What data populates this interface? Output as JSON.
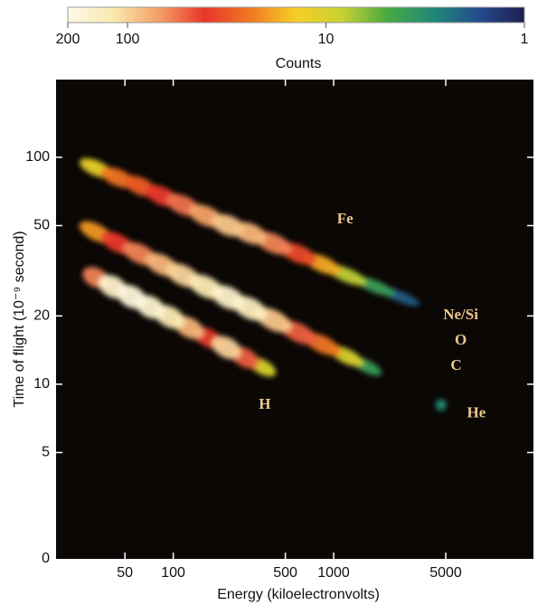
{
  "chart_data": {
    "type": "scatter",
    "x_label": "Energy (kiloelectronvolts)",
    "y_label": "Time of flight (10⁻⁹ second)",
    "xscale": "log",
    "yscale": "log",
    "xlim": [
      18.6,
      17600
    ],
    "ylim": [
      1.7,
      220
    ],
    "xticks": [
      50,
      100,
      500,
      1000,
      5000
    ],
    "yticks": [
      5,
      10,
      20,
      50,
      100
    ],
    "y_origin_label": "0",
    "background": "#0b0705",
    "tracks": [
      {
        "x": [
          33,
          45,
          62,
          85,
          115,
          160,
          220,
          300,
          420,
          600,
          850,
          1200,
          1800,
          2600
        ],
        "y": [
          89.6,
          81.4,
          74.7,
          67.6,
          61.6,
          55.2,
          50.1,
          46.3,
          41.8,
          37.6,
          33.8,
          30.3,
          27.0,
          24.3
        ],
        "counts": [
          12,
          25,
          30,
          40,
          55,
          70,
          90,
          80,
          60,
          35,
          18,
          8,
          4,
          2
        ]
      },
      {
        "x": [
          33,
          45,
          62,
          85,
          115,
          160,
          220,
          300,
          420,
          600,
          850,
          1200,
          1600
        ],
        "y": [
          46.8,
          41.9,
          37.5,
          33.6,
          30.2,
          26.9,
          24.1,
          21.6,
          19.2,
          16.9,
          15.0,
          13.3,
          12.0
        ],
        "counts": [
          20,
          40,
          60,
          80,
          100,
          120,
          150,
          130,
          90,
          50,
          25,
          10,
          4
        ]
      },
      {
        "x": [
          33,
          42,
          55,
          72,
          95,
          125,
          165,
          215,
          280,
          360
        ],
        "y": [
          29.5,
          26.9,
          24.3,
          21.9,
          19.8,
          17.8,
          16.0,
          14.5,
          13.1,
          11.9
        ],
        "counts": [
          60,
          150,
          180,
          160,
          120,
          80,
          40,
          100,
          50,
          10
        ]
      },
      {
        "x": [
          4670
        ],
        "y": [
          8.1
        ],
        "counts": [
          3
        ]
      }
    ],
    "annotation_color": "#ecc88e",
    "annotations": [
      {
        "text": "Fe",
        "x": 1180,
        "y": 53
      },
      {
        "text": "Ne/Si",
        "x": 6200,
        "y": 20
      },
      {
        "text": "O",
        "x": 6200,
        "y": 15.5
      },
      {
        "text": "C",
        "x": 5800,
        "y": 12
      },
      {
        "text": "H",
        "x": 372,
        "y": 8.1
      },
      {
        "text": "He",
        "x": 7760,
        "y": 7.4
      }
    ],
    "colorbar": {
      "label": "Counts",
      "scale": "log",
      "lim": [
        200,
        1
      ],
      "ticks": [
        200,
        100,
        10,
        1
      ],
      "colors": [
        "#fdf9e6",
        "#fbe9b0",
        "#f3a064",
        "#e8352a",
        "#f07a22",
        "#f6cf24",
        "#c9d232",
        "#48aa42",
        "#21887a",
        "#234c8c",
        "#1e1f52"
      ]
    }
  }
}
